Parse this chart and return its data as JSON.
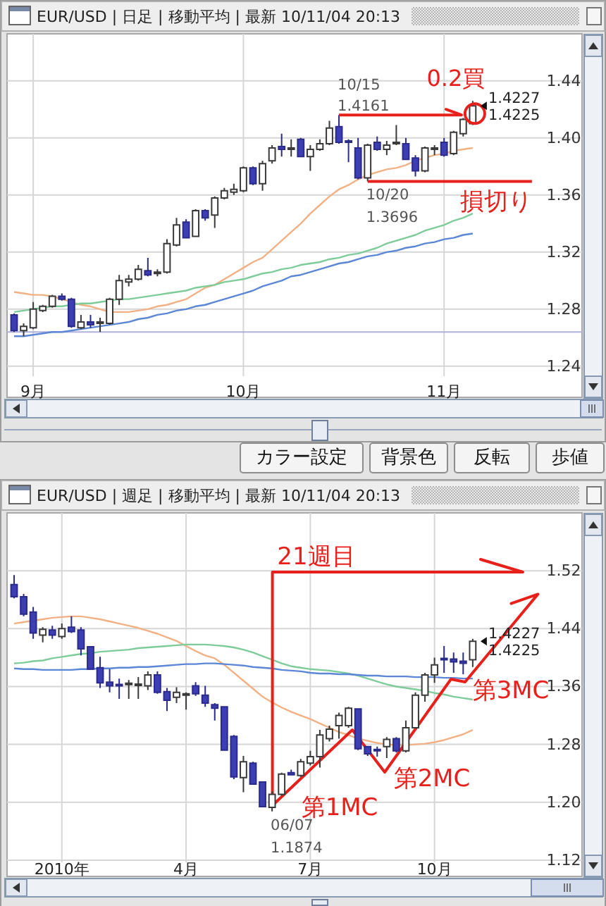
{
  "chart_data": [
    {
      "type": "candlestick",
      "title": "EUR/USD | 日足 | 移動平均 | 最新 10/11/04 20:13",
      "categories": [
        null,
        null,
        "9月",
        null,
        null,
        null,
        null,
        null,
        null,
        null,
        null,
        null,
        null,
        null,
        null,
        null,
        null,
        null,
        null,
        null,
        null,
        null,
        null,
        null,
        "10月",
        null,
        null,
        null,
        null,
        null,
        null,
        null,
        null,
        null,
        null,
        null,
        null,
        null,
        null,
        null,
        null,
        null,
        null,
        null,
        null,
        "11月",
        null,
        null,
        null
      ],
      "ohlc": [
        [
          1.276,
          1.277,
          1.264,
          1.265
        ],
        [
          1.265,
          1.27,
          1.261,
          1.268
        ],
        [
          1.267,
          1.285,
          1.266,
          1.28
        ],
        [
          1.279,
          1.283,
          1.278,
          1.282
        ],
        [
          1.282,
          1.29,
          1.281,
          1.289
        ],
        [
          1.289,
          1.291,
          1.286,
          1.287
        ],
        [
          1.287,
          1.288,
          1.267,
          1.268
        ],
        [
          1.267,
          1.276,
          1.266,
          1.271
        ],
        [
          1.271,
          1.276,
          1.267,
          1.269
        ],
        [
          1.27,
          1.274,
          1.264,
          1.271
        ],
        [
          1.27,
          1.288,
          1.269,
          1.287
        ],
        [
          1.287,
          1.304,
          1.283,
          1.3
        ],
        [
          1.299,
          1.304,
          1.296,
          1.301
        ],
        [
          1.301,
          1.311,
          1.3,
          1.308
        ],
        [
          1.307,
          1.316,
          1.303,
          1.304
        ],
        [
          1.305,
          1.308,
          1.303,
          1.306
        ],
        [
          1.306,
          1.329,
          1.305,
          1.326
        ],
        [
          1.325,
          1.344,
          1.324,
          1.339
        ],
        [
          1.341,
          1.343,
          1.33,
          1.33
        ],
        [
          1.331,
          1.35,
          1.331,
          1.349
        ],
        [
          1.349,
          1.35,
          1.342,
          1.344
        ],
        [
          1.346,
          1.359,
          1.337,
          1.358
        ],
        [
          1.358,
          1.365,
          1.357,
          1.363
        ],
        [
          1.362,
          1.368,
          1.36,
          1.364
        ],
        [
          1.363,
          1.38,
          1.362,
          1.379
        ],
        [
          1.379,
          1.38,
          1.367,
          1.368
        ],
        [
          1.368,
          1.384,
          1.363,
          1.382
        ],
        [
          1.384,
          1.395,
          1.382,
          1.393
        ],
        [
          1.394,
          1.403,
          1.387,
          1.392
        ],
        [
          1.392,
          1.399,
          1.387,
          1.393
        ],
        [
          1.399,
          1.4,
          1.387,
          1.387
        ],
        [
          1.387,
          1.395,
          1.377,
          1.392
        ],
        [
          1.392,
          1.399,
          1.391,
          1.396
        ],
        [
          1.396,
          1.412,
          1.395,
          1.407
        ],
        [
          1.408,
          1.4161,
          1.396,
          1.397
        ],
        [
          1.398,
          1.399,
          1.383,
          1.397
        ],
        [
          1.393,
          1.4,
          1.371,
          1.372
        ],
        [
          1.372,
          1.396,
          1.3696,
          1.395
        ],
        [
          1.397,
          1.401,
          1.391,
          1.392
        ],
        [
          1.392,
          1.398,
          1.388,
          1.395
        ],
        [
          1.396,
          1.409,
          1.395,
          1.397
        ],
        [
          1.396,
          1.4,
          1.385,
          1.385
        ],
        [
          1.386,
          1.388,
          1.373,
          1.377
        ],
        [
          1.377,
          1.394,
          1.376,
          1.393
        ],
        [
          1.392,
          1.395,
          1.388,
          1.393
        ],
        [
          1.397,
          1.4,
          1.387,
          1.388
        ],
        [
          1.389,
          1.405,
          1.388,
          1.404
        ],
        [
          1.403,
          1.414,
          1.401,
          1.413
        ],
        [
          1.41,
          1.426,
          1.409,
          1.4225
        ]
      ],
      "series": [
        {
          "type": "line",
          "color": "#f2b184",
          "values": [
            1.292,
            1.291,
            1.29,
            1.29,
            1.289,
            1.287,
            1.285,
            1.283,
            1.282,
            1.28,
            1.278,
            1.278,
            1.278,
            1.279,
            1.28,
            1.282,
            1.283,
            1.285,
            1.287,
            1.291,
            1.295,
            1.297,
            1.301,
            1.305,
            1.309,
            1.313,
            1.316,
            1.322,
            1.328,
            1.334,
            1.34,
            1.347,
            1.353,
            1.359,
            1.364,
            1.367,
            1.371,
            1.374,
            1.376,
            1.378,
            1.379,
            1.381,
            1.384,
            1.386,
            1.388,
            1.389,
            1.391,
            1.392,
            1.393
          ]
        },
        {
          "type": "line",
          "color": "#7dcc9a",
          "values": [
            1.278,
            1.279,
            1.28,
            1.281,
            1.282,
            1.282,
            1.283,
            1.284,
            1.284,
            1.285,
            1.286,
            1.287,
            1.287,
            1.288,
            1.289,
            1.29,
            1.291,
            1.292,
            1.293,
            1.295,
            1.296,
            1.297,
            1.299,
            1.3,
            1.301,
            1.303,
            1.305,
            1.306,
            1.308,
            1.309,
            1.311,
            1.312,
            1.313,
            1.315,
            1.316,
            1.318,
            1.319,
            1.321,
            1.323,
            1.326,
            1.328,
            1.33,
            1.332,
            1.335,
            1.337,
            1.339,
            1.342,
            1.344,
            1.347
          ]
        },
        {
          "type": "line",
          "color": "#5b87d6",
          "values": [
            1.261,
            1.261,
            1.262,
            1.263,
            1.264,
            1.264,
            1.265,
            1.266,
            1.267,
            1.268,
            1.269,
            1.27,
            1.271,
            1.273,
            1.274,
            1.276,
            1.277,
            1.279,
            1.28,
            1.282,
            1.283,
            1.285,
            1.287,
            1.289,
            1.291,
            1.293,
            1.296,
            1.298,
            1.3,
            1.303,
            1.304,
            1.306,
            1.308,
            1.31,
            1.312,
            1.313,
            1.315,
            1.317,
            1.318,
            1.32,
            1.321,
            1.323,
            1.324,
            1.326,
            1.327,
            1.329,
            1.33,
            1.332,
            1.333
          ]
        }
      ],
      "ylim": [
        1.233,
        1.473
      ],
      "yticks": [
        1.24,
        1.28,
        1.32,
        1.36,
        {
          "value": 1.4,
          "label": "1.40"
        },
        1.44
      ],
      "grid": true,
      "ref_lines": [
        {
          "axis": "y",
          "value": 1.4161,
          "label": "0.2買",
          "color": "#e8201c"
        },
        {
          "axis": "y",
          "value": 1.3696,
          "label": "損切り",
          "color": "#e8201c"
        },
        {
          "axis": "y",
          "value": 1.264,
          "color": "#b0b0dc"
        }
      ],
      "annotations": [
        {
          "text": "10/15",
          "y": 1.4161
        },
        {
          "text": "1.4161",
          "y": 1.4161
        },
        {
          "text": "10/20",
          "y": 1.3696
        },
        {
          "text": "1.3696",
          "y": 1.3696
        },
        "1.4227",
        "1.4225"
      ]
    },
    {
      "type": "other",
      "annotations": [
        "カラー設定",
        "背景色",
        "反転",
        "歩値"
      ]
    },
    {
      "type": "candlestick",
      "title": "EUR/USD | 週足 | 移動平均 | 最新 10/11/04 20:13",
      "categories": [
        null,
        null,
        null,
        null,
        null,
        "2010年",
        null,
        null,
        null,
        null,
        null,
        null,
        null,
        null,
        null,
        null,
        null,
        null,
        "4月",
        null,
        null,
        null,
        null,
        null,
        null,
        null,
        null,
        null,
        null,
        null,
        null,
        "7月",
        null,
        null,
        null,
        null,
        null,
        null,
        null,
        null,
        null,
        null,
        null,
        null,
        "10月",
        null,
        null,
        null,
        null
      ],
      "ohlc": [
        [
          1.501,
          1.514,
          1.482,
          1.484
        ],
        [
          1.484,
          1.488,
          1.457,
          1.46
        ],
        [
          1.463,
          1.47,
          1.426,
          1.434
        ],
        [
          1.431,
          1.442,
          1.421,
          1.439
        ],
        [
          1.438,
          1.444,
          1.426,
          1.431
        ],
        [
          1.429,
          1.447,
          1.426,
          1.44
        ],
        [
          1.442,
          1.457,
          1.434,
          1.436
        ],
        [
          1.438,
          1.442,
          1.403,
          1.412
        ],
        [
          1.415,
          1.416,
          1.384,
          1.384
        ],
        [
          1.386,
          1.401,
          1.358,
          1.365
        ],
        [
          1.366,
          1.384,
          1.352,
          1.361
        ],
        [
          1.363,
          1.371,
          1.343,
          1.361
        ],
        [
          1.363,
          1.369,
          1.343,
          1.364
        ],
        [
          1.362,
          1.373,
          1.343,
          1.363
        ],
        [
          1.361,
          1.381,
          1.355,
          1.376
        ],
        [
          1.376,
          1.381,
          1.35,
          1.352
        ],
        [
          1.353,
          1.358,
          1.326,
          1.341
        ],
        [
          1.345,
          1.359,
          1.337,
          1.352
        ],
        [
          1.348,
          1.352,
          1.328,
          1.35
        ],
        [
          1.361,
          1.366,
          1.347,
          1.35
        ],
        [
          1.348,
          1.361,
          1.332,
          1.337
        ],
        [
          1.335,
          1.337,
          1.313,
          1.33
        ],
        [
          1.332,
          1.333,
          1.271,
          1.272
        ],
        [
          1.291,
          1.293,
          1.232,
          1.235
        ],
        [
          1.234,
          1.264,
          1.214,
          1.256
        ],
        [
          1.254,
          1.256,
          1.224,
          1.225
        ],
        [
          1.228,
          1.228,
          1.194,
          1.194
        ],
        [
          1.193,
          1.215,
          1.1874,
          1.211
        ],
        [
          1.211,
          1.241,
          1.209,
          1.239
        ],
        [
          1.241,
          1.245,
          1.237,
          1.238
        ],
        [
          1.237,
          1.26,
          1.235,
          1.256
        ],
        [
          1.254,
          1.271,
          1.251,
          1.263
        ],
        [
          1.263,
          1.3,
          1.248,
          1.293
        ],
        [
          1.288,
          1.306,
          1.284,
          1.301
        ],
        [
          1.306,
          1.324,
          1.288,
          1.32
        ],
        [
          1.306,
          1.332,
          1.303,
          1.33
        ],
        [
          1.329,
          1.33,
          1.272,
          1.274
        ],
        [
          1.277,
          1.278,
          1.264,
          1.267
        ],
        [
          1.273,
          1.277,
          1.263,
          1.271
        ],
        [
          1.277,
          1.29,
          1.261,
          1.287
        ],
        [
          1.288,
          1.29,
          1.269,
          1.271
        ],
        [
          1.271,
          1.313,
          1.269,
          1.303
        ],
        [
          1.303,
          1.352,
          1.302,
          1.348
        ],
        [
          1.348,
          1.379,
          1.339,
          1.376
        ],
        [
          1.376,
          1.4,
          1.365,
          1.39
        ],
        [
          1.399,
          1.416,
          1.379,
          1.397
        ],
        [
          1.398,
          1.407,
          1.379,
          1.394
        ],
        [
          1.395,
          1.407,
          1.377,
          1.392
        ],
        [
          1.397,
          1.426,
          1.387,
          1.4225
        ]
      ],
      "series": [
        {
          "type": "line",
          "color": "#f2b184",
          "values": [
            1.447,
            1.449,
            1.451,
            1.453,
            1.455,
            1.456,
            1.457,
            1.457,
            1.455,
            1.453,
            1.45,
            1.447,
            1.444,
            1.441,
            1.437,
            1.433,
            1.428,
            1.423,
            1.416,
            1.409,
            1.403,
            1.399,
            1.39,
            1.379,
            1.368,
            1.357,
            1.346,
            1.338,
            1.331,
            1.325,
            1.32,
            1.315,
            1.309,
            1.303,
            1.297,
            1.293,
            1.288,
            1.285,
            1.282,
            1.28,
            1.279,
            1.279,
            1.28,
            1.281,
            1.283,
            1.286,
            1.29,
            1.294,
            1.3
          ]
        },
        {
          "type": "line",
          "color": "#7dcc9a",
          "values": [
            1.392,
            1.393,
            1.395,
            1.396,
            1.399,
            1.401,
            1.403,
            1.405,
            1.406,
            1.408,
            1.409,
            1.41,
            1.411,
            1.413,
            1.414,
            1.415,
            1.416,
            1.417,
            1.418,
            1.418,
            1.418,
            1.417,
            1.416,
            1.414,
            1.411,
            1.407,
            1.402,
            1.397,
            1.392,
            1.388,
            1.386,
            1.384,
            1.383,
            1.382,
            1.38,
            1.378,
            1.375,
            1.371,
            1.367,
            1.363,
            1.36,
            1.358,
            1.356,
            1.354,
            1.351,
            1.349,
            1.346,
            1.344,
            1.342
          ]
        },
        {
          "type": "line",
          "color": "#5b87d6",
          "values": [
            1.385,
            1.384,
            1.384,
            1.383,
            1.383,
            1.383,
            1.383,
            1.384,
            1.384,
            1.385,
            1.385,
            1.386,
            1.386,
            1.387,
            1.387,
            1.388,
            1.389,
            1.39,
            1.391,
            1.391,
            1.392,
            1.392,
            1.391,
            1.39,
            1.389,
            1.387,
            1.386,
            1.385,
            1.383,
            1.382,
            1.381,
            1.379,
            1.378,
            1.378,
            1.377,
            1.377,
            1.376,
            1.375,
            1.375,
            1.374,
            1.374,
            1.374,
            1.373,
            1.373,
            1.373,
            1.372,
            1.372,
            1.371,
            1.371
          ]
        }
      ],
      "ylim": [
        1.117,
        1.6
      ],
      "yticks": [
        1.12,
        {
          "value": 1.2,
          "label": "1.20"
        },
        1.28,
        1.36,
        1.44,
        1.52
      ],
      "grid": true,
      "annotations": [
        "21週目",
        "第1MC",
        "第2MC",
        "第3MC",
        "06/07",
        "1.1874",
        "1.4227",
        "1.4225"
      ]
    }
  ]
}
